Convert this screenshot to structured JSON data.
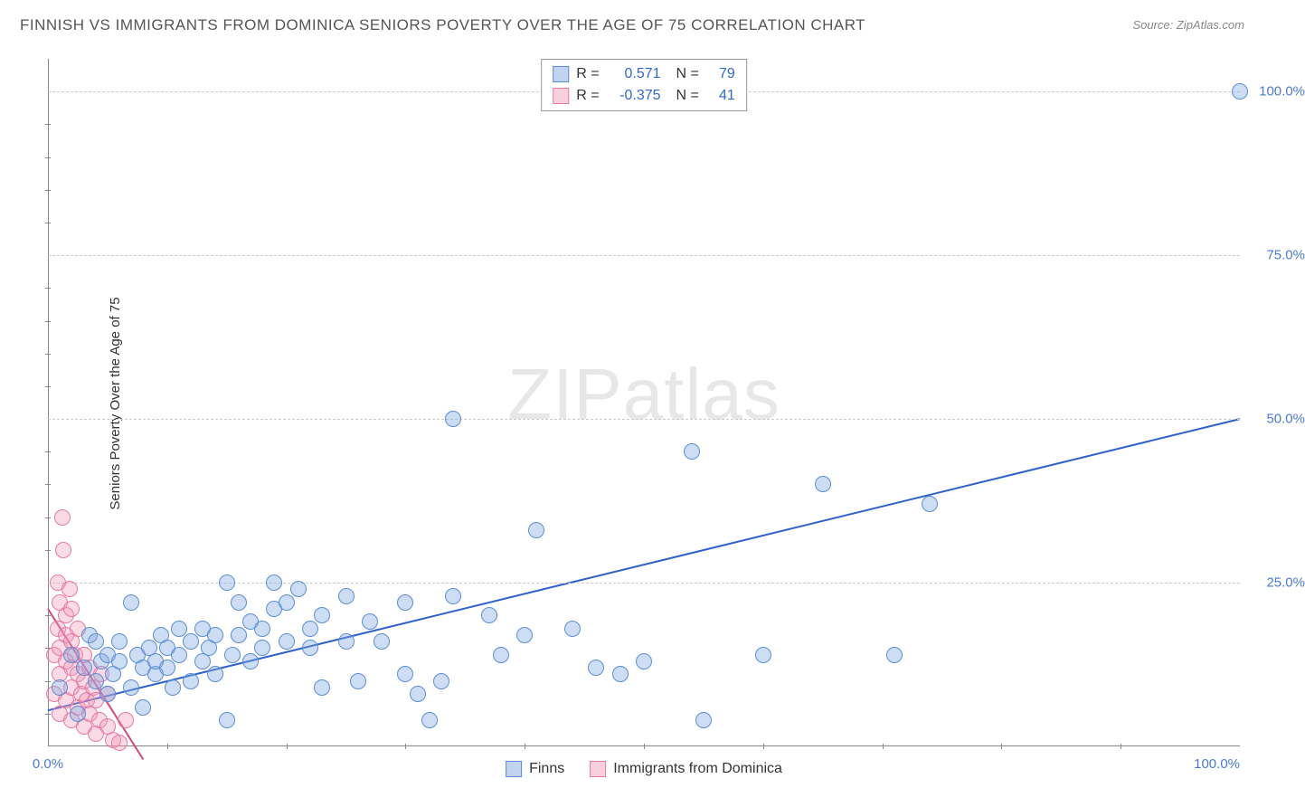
{
  "title": "FINNISH VS IMMIGRANTS FROM DOMINICA SENIORS POVERTY OVER THE AGE OF 75 CORRELATION CHART",
  "source_label": "Source: ",
  "source_name": "ZipAtlas.com",
  "watermark_a": "ZIP",
  "watermark_b": "atlas",
  "ylabel": "Seniors Poverty Over the Age of 75",
  "chart": {
    "type": "scatter",
    "xlim": [
      0,
      100
    ],
    "ylim": [
      0,
      105
    ],
    "background": "#ffffff",
    "grid_color": "#cccccc",
    "axis_color": "#888888",
    "point_radius": 9,
    "yticks_major": [
      {
        "v": 25,
        "label": "25.0%"
      },
      {
        "v": 50,
        "label": "50.0%"
      },
      {
        "v": 75,
        "label": "75.0%"
      },
      {
        "v": 100,
        "label": "100.0%"
      }
    ],
    "yticks_minor": [
      5,
      10,
      15,
      20,
      30,
      35,
      40,
      45,
      55,
      60,
      65,
      70,
      80,
      85,
      90,
      95
    ],
    "xticks_minor": [
      10,
      20,
      30,
      40,
      50,
      60,
      70,
      80,
      90
    ],
    "x_origin_label": "0.0%",
    "x_end_label": "100.0%",
    "legend_top": [
      {
        "swatch": "blue",
        "r_label": "R =",
        "r": "0.571",
        "n_label": "N =",
        "n": "79"
      },
      {
        "swatch": "pink",
        "r_label": "R =",
        "r": "-0.375",
        "n_label": "N =",
        "n": "41"
      }
    ],
    "legend_bottom": [
      {
        "swatch": "blue",
        "label": "Finns"
      },
      {
        "swatch": "pink",
        "label": "Immigrants from Dominica"
      }
    ],
    "series": {
      "blue": {
        "color_fill": "rgba(130,170,225,0.4)",
        "color_stroke": "#5c8ed6",
        "trend": {
          "x1": 0,
          "y1": 5.5,
          "x2": 100,
          "y2": 50,
          "color": "#2e62c9",
          "width": 2
        },
        "points": [
          [
            1,
            9
          ],
          [
            2,
            14
          ],
          [
            2.5,
            5
          ],
          [
            3,
            12
          ],
          [
            3.5,
            17
          ],
          [
            4,
            10
          ],
          [
            4,
            16
          ],
          [
            4.5,
            13
          ],
          [
            5,
            8
          ],
          [
            5,
            14
          ],
          [
            5.5,
            11
          ],
          [
            6,
            13
          ],
          [
            6,
            16
          ],
          [
            7,
            9
          ],
          [
            7,
            22
          ],
          [
            7.5,
            14
          ],
          [
            8,
            6
          ],
          [
            8,
            12
          ],
          [
            8.5,
            15
          ],
          [
            9,
            11
          ],
          [
            9,
            13
          ],
          [
            9.5,
            17
          ],
          [
            10,
            12
          ],
          [
            10,
            15
          ],
          [
            10.5,
            9
          ],
          [
            11,
            14
          ],
          [
            11,
            18
          ],
          [
            12,
            10
          ],
          [
            12,
            16
          ],
          [
            13,
            13
          ],
          [
            13,
            18
          ],
          [
            13.5,
            15
          ],
          [
            14,
            11
          ],
          [
            14,
            17
          ],
          [
            15,
            4
          ],
          [
            15,
            25
          ],
          [
            15.5,
            14
          ],
          [
            16,
            17
          ],
          [
            16,
            22
          ],
          [
            17,
            13
          ],
          [
            17,
            19
          ],
          [
            18,
            15
          ],
          [
            18,
            18
          ],
          [
            19,
            21
          ],
          [
            19,
            25
          ],
          [
            20,
            16
          ],
          [
            20,
            22
          ],
          [
            21,
            24
          ],
          [
            22,
            18
          ],
          [
            22,
            15
          ],
          [
            23,
            9
          ],
          [
            23,
            20
          ],
          [
            25,
            16
          ],
          [
            25,
            23
          ],
          [
            26,
            10
          ],
          [
            27,
            19
          ],
          [
            28,
            16
          ],
          [
            30,
            11
          ],
          [
            30,
            22
          ],
          [
            31,
            8
          ],
          [
            32,
            4
          ],
          [
            33,
            10
          ],
          [
            34,
            23
          ],
          [
            34,
            50
          ],
          [
            37,
            20
          ],
          [
            38,
            14
          ],
          [
            40,
            17
          ],
          [
            41,
            33
          ],
          [
            44,
            18
          ],
          [
            46,
            12
          ],
          [
            48,
            11
          ],
          [
            50,
            13
          ],
          [
            54,
            45
          ],
          [
            55,
            4
          ],
          [
            60,
            14
          ],
          [
            65,
            40
          ],
          [
            71,
            14
          ],
          [
            74,
            37
          ],
          [
            100,
            100
          ]
        ]
      },
      "pink": {
        "color_fill": "rgba(240,150,180,0.35)",
        "color_stroke": "#e87aa5",
        "trend": {
          "x1": 0,
          "y1": 21,
          "x2": 8,
          "y2": -2,
          "color": "#d6457e",
          "width": 2
        },
        "points": [
          [
            0.5,
            8
          ],
          [
            0.5,
            14
          ],
          [
            0.8,
            18
          ],
          [
            0.8,
            25
          ],
          [
            1,
            5
          ],
          [
            1,
            11
          ],
          [
            1,
            15
          ],
          [
            1,
            22
          ],
          [
            1.2,
            35
          ],
          [
            1.3,
            30
          ],
          [
            1.5,
            7
          ],
          [
            1.5,
            13
          ],
          [
            1.5,
            17
          ],
          [
            1.5,
            20
          ],
          [
            1.8,
            24
          ],
          [
            2,
            4
          ],
          [
            2,
            9
          ],
          [
            2,
            12
          ],
          [
            2,
            16
          ],
          [
            2,
            21
          ],
          [
            2.3,
            14
          ],
          [
            2.5,
            6
          ],
          [
            2.5,
            11
          ],
          [
            2.5,
            18
          ],
          [
            2.8,
            8
          ],
          [
            3,
            3
          ],
          [
            3,
            10
          ],
          [
            3,
            14
          ],
          [
            3.3,
            7
          ],
          [
            3.5,
            5
          ],
          [
            3.5,
            12
          ],
          [
            3.8,
            9
          ],
          [
            4,
            2
          ],
          [
            4,
            7
          ],
          [
            4.3,
            4
          ],
          [
            4.5,
            11
          ],
          [
            5,
            3
          ],
          [
            5,
            8
          ],
          [
            5.5,
            1
          ],
          [
            6,
            0.5
          ],
          [
            6.5,
            4
          ]
        ]
      }
    }
  }
}
